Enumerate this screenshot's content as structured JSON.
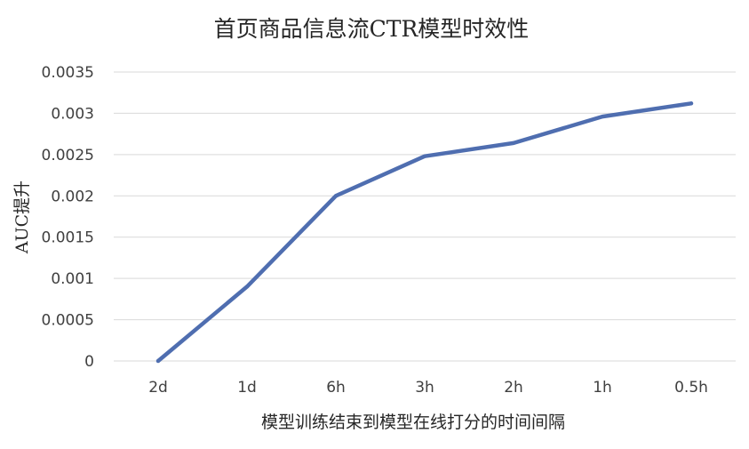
{
  "chart_data": {
    "type": "line",
    "title": "首页商品信息流CTR模型时效性",
    "xlabel": "模型训练结束到模型在线打分的时间间隔",
    "ylabel": "AUC提升",
    "categories": [
      "2d",
      "1d",
      "6h",
      "3h",
      "2h",
      "1h",
      "0.5h"
    ],
    "yticks": [
      "0",
      "0.0005",
      "0.001",
      "0.0015",
      "0.002",
      "0.0025",
      "0.003",
      "0.0035"
    ],
    "ylim": [
      0,
      0.0035
    ],
    "grid": true,
    "series": [
      {
        "values": [
          0,
          0.0009,
          0.002,
          0.00248,
          0.00264,
          0.00296,
          0.00312
        ],
        "color": "#4f6eb0"
      }
    ]
  }
}
